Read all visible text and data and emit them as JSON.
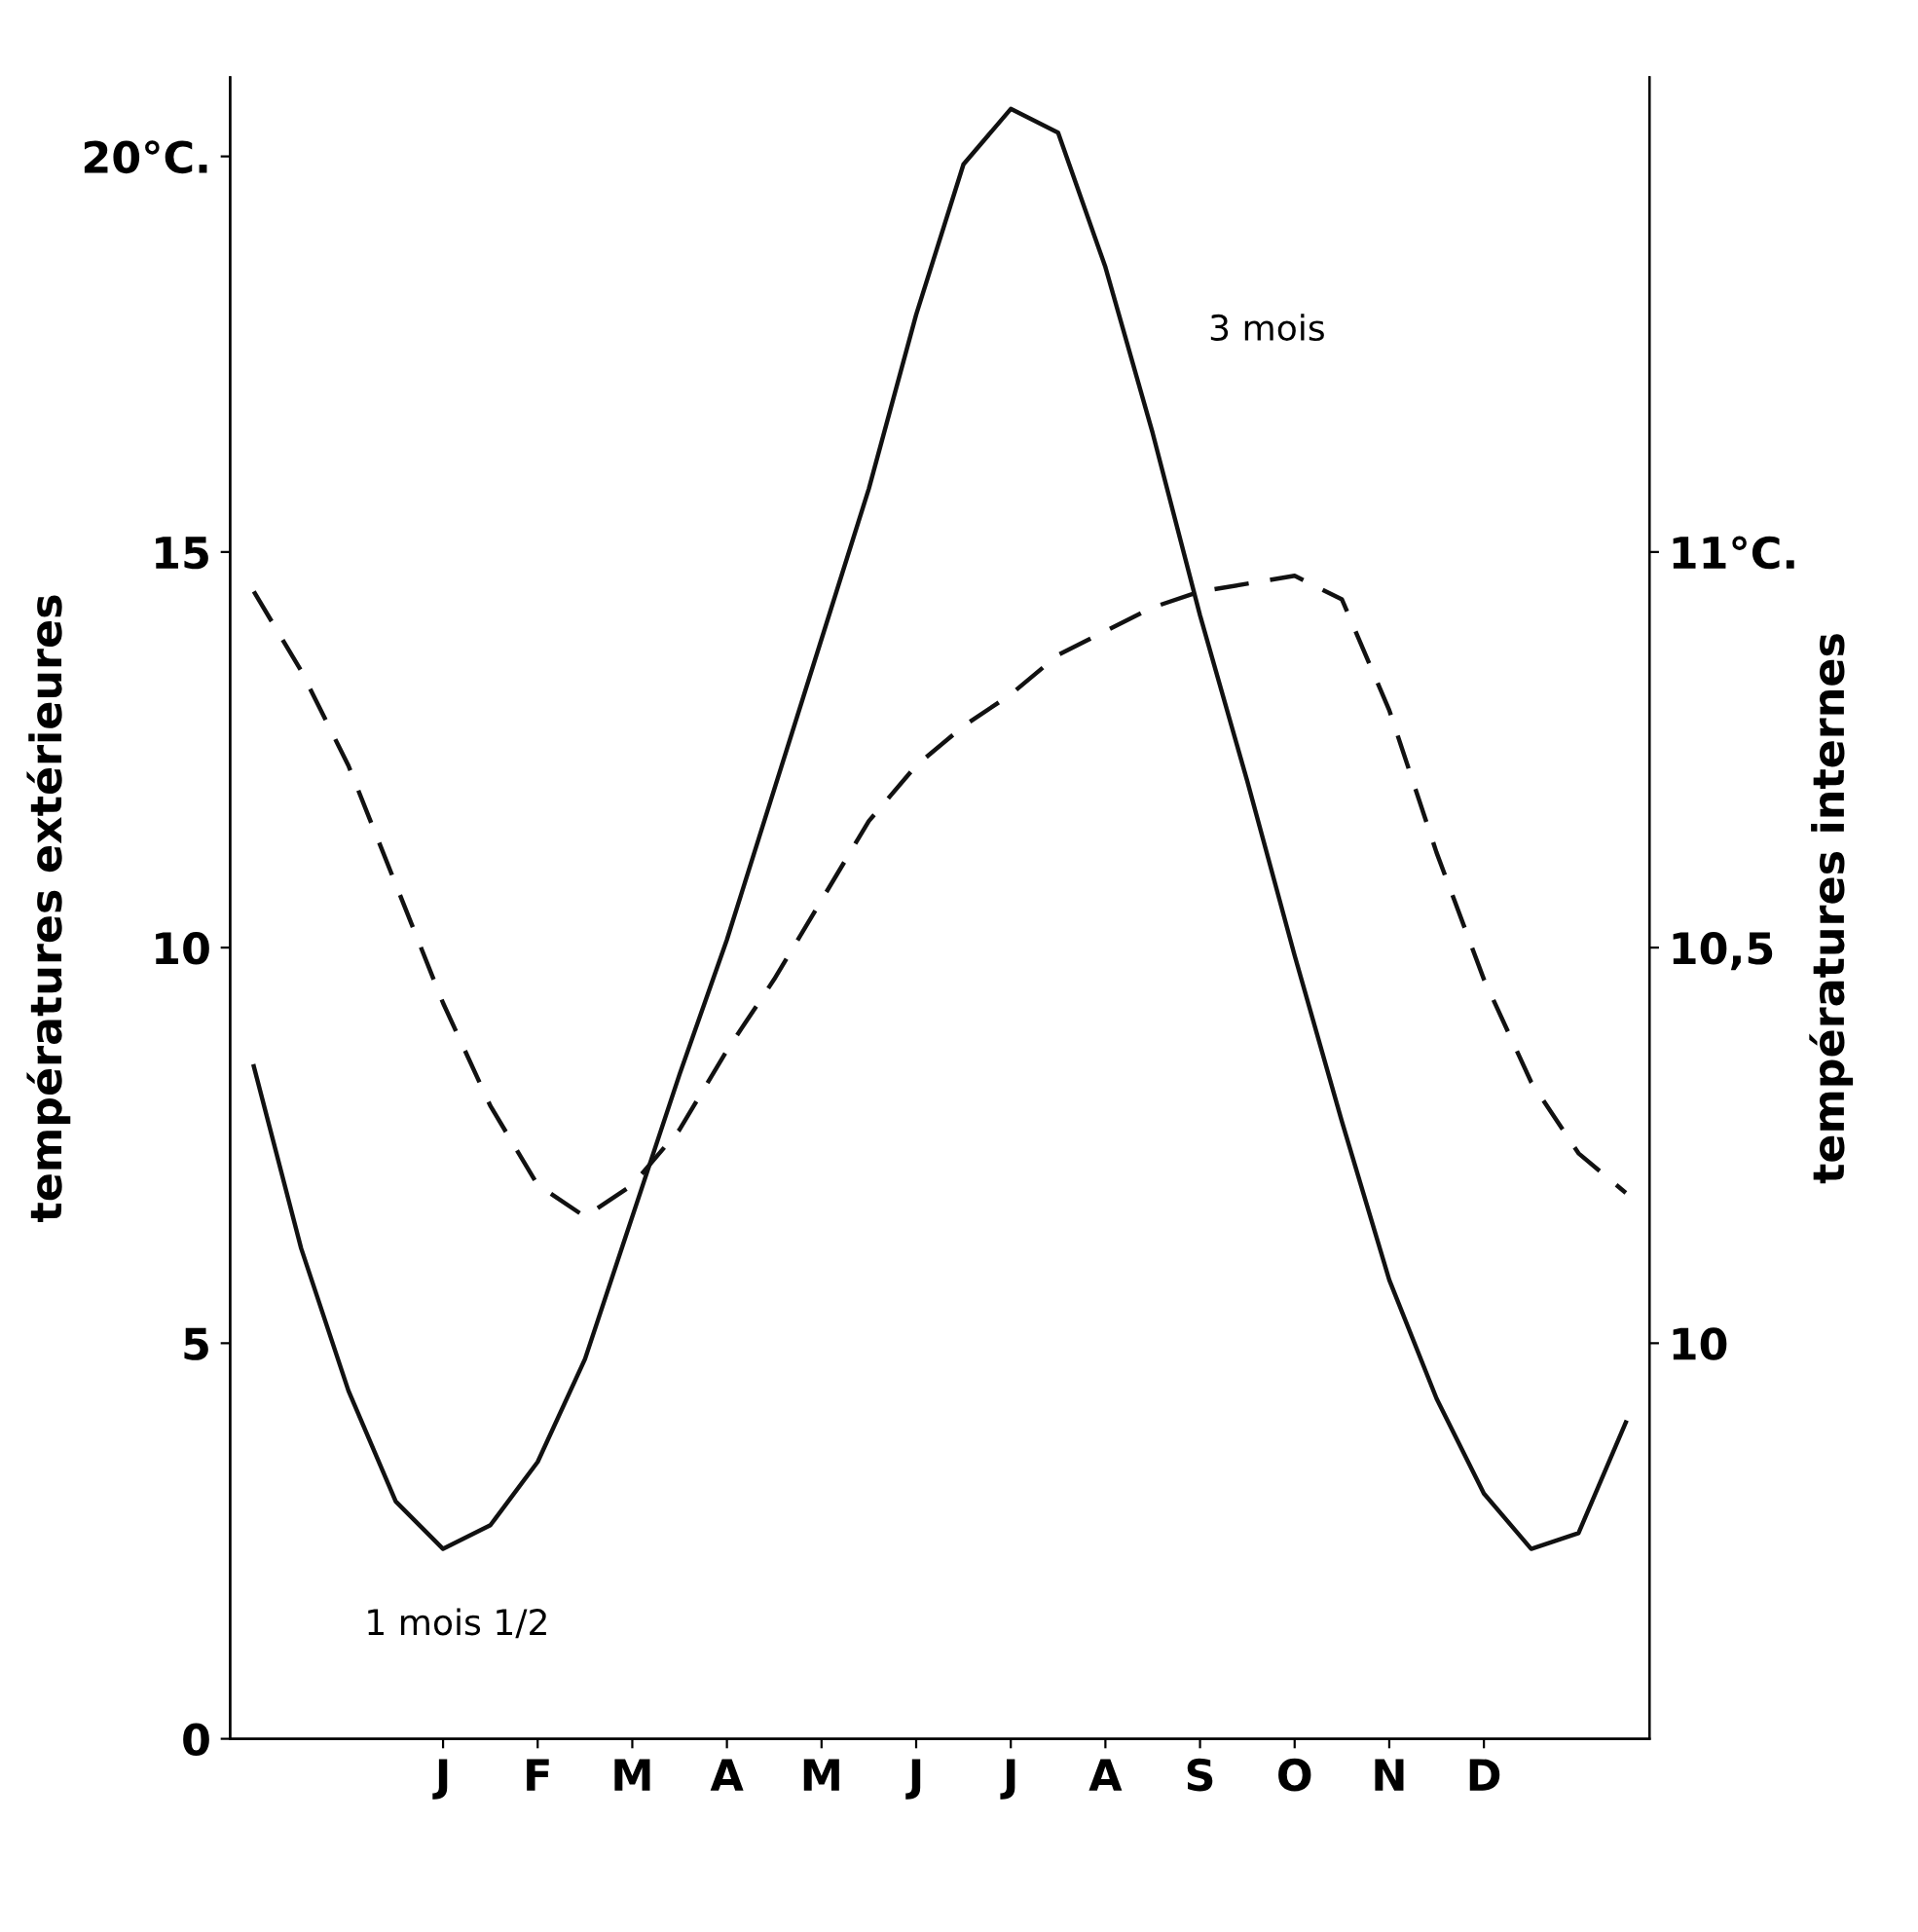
{
  "chart_data": {
    "type": "line",
    "ylabel": "températures extérieures",
    "y2label": "températures internes",
    "categories": [
      null,
      null,
      null,
      null,
      "J",
      null,
      "F",
      null,
      "M",
      null,
      "A",
      null,
      "M",
      null,
      "J",
      null,
      "J",
      null,
      "A",
      null,
      "S",
      null,
      "O",
      null,
      "N",
      null,
      "D",
      null,
      null,
      null
    ],
    "ylim": [
      0,
      21
    ],
    "yticks": [
      0,
      5,
      10,
      15,
      {
        "value": 20,
        "label": "20°C."
      }
    ],
    "y2lim": [
      9.5,
      11.6
    ],
    "y2ticks": [
      10,
      {
        "value": 10.5,
        "label": "10,5"
      },
      {
        "value": 11,
        "label": "11°C."
      }
    ],
    "series": [
      {
        "color": "#111111",
        "line_style": "solid",
        "values": [
          8.5,
          6.2,
          4.4,
          3.0,
          2.4,
          2.7,
          3.5,
          4.8,
          6.6,
          8.4,
          10.1,
          12.0,
          13.9,
          15.8,
          18.0,
          19.9,
          20.6,
          20.3,
          18.6,
          16.5,
          14.2,
          12.1,
          9.9,
          7.8,
          5.8,
          4.3,
          3.1,
          2.4,
          2.6,
          4.0
        ]
      },
      {
        "color": "#111111",
        "line_style": "dashed",
        "axis": "y2",
        "values": [
          10.95,
          10.85,
          10.73,
          10.58,
          10.43,
          10.3,
          10.2,
          10.16,
          10.2,
          10.27,
          10.37,
          10.46,
          10.56,
          10.66,
          10.73,
          10.78,
          10.82,
          10.87,
          10.9,
          10.93,
          10.95,
          10.96,
          10.97,
          10.94,
          10.8,
          10.62,
          10.46,
          10.33,
          10.24,
          10.19
        ]
      }
    ],
    "annotations": [
      "1 mois 1/2",
      "3 mois"
    ],
    "grid": false,
    "legend": false
  }
}
